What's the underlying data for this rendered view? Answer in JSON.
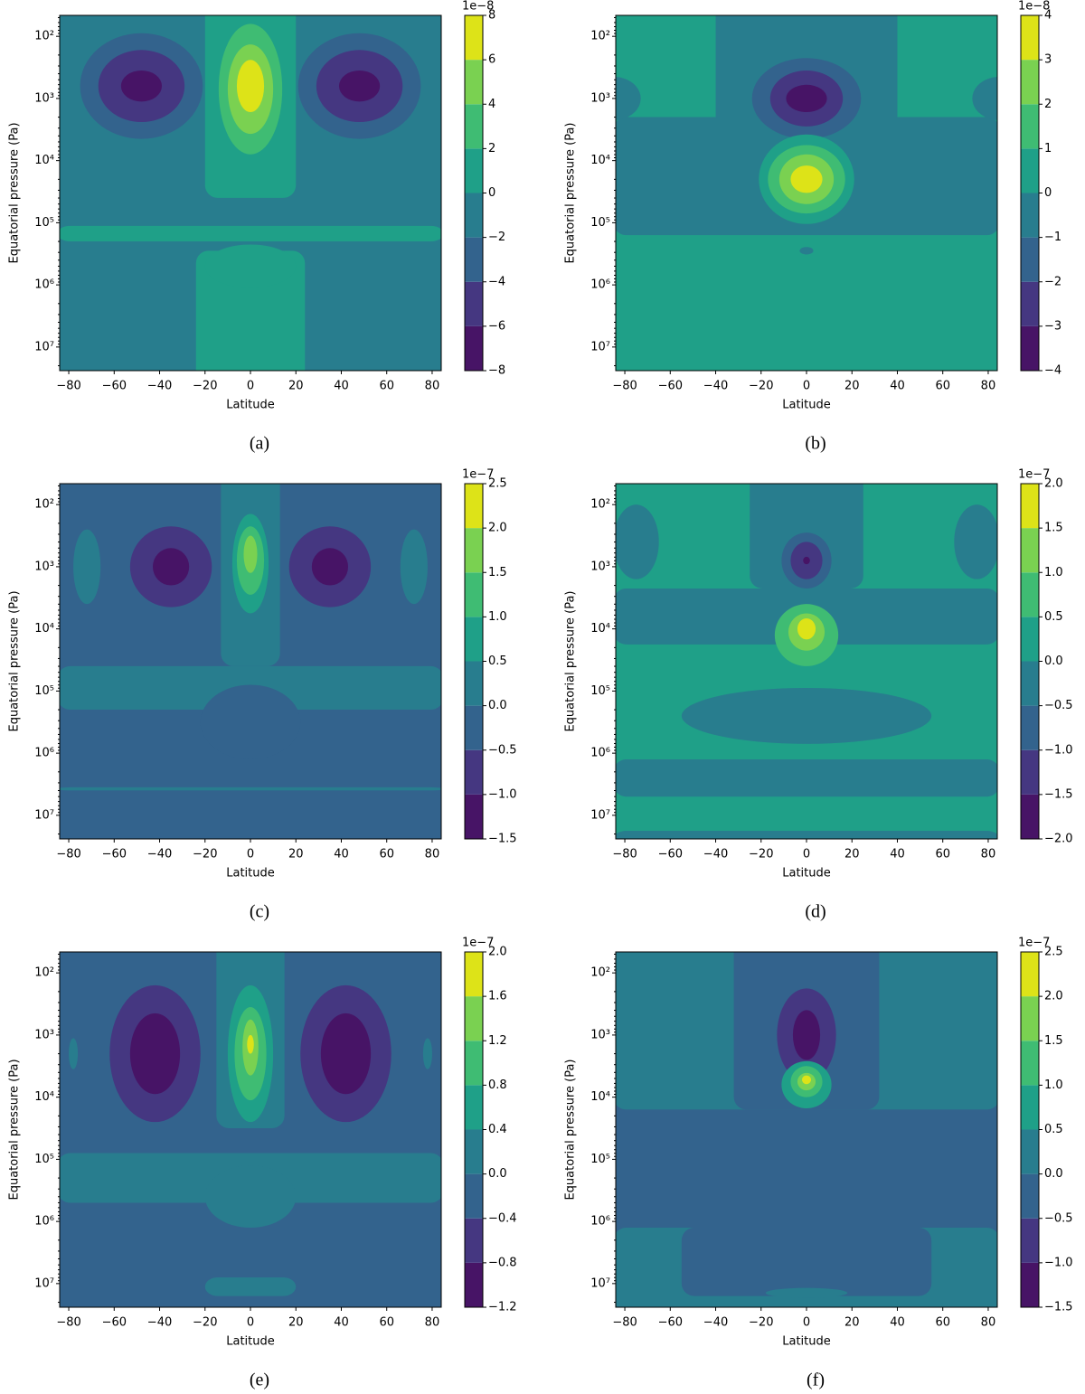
{
  "chart_data": [
    {
      "type": "contour",
      "caption": "(a)",
      "xlabel": "Latitude",
      "ylabel": "Equatorial pressure (Pa)",
      "log_y": true,
      "xlim": [
        -84,
        84
      ],
      "xticks": [
        {
          "value": -80,
          "label": "−80"
        },
        {
          "value": -60,
          "label": "−60"
        },
        {
          "value": -40,
          "label": "−40"
        },
        {
          "value": -20,
          "label": "−20"
        },
        0,
        20,
        40,
        60,
        80
      ],
      "ylim": [
        24000000,
        46
      ],
      "yticks": [
        {
          "value": 100,
          "label": "10²"
        },
        {
          "value": 1000,
          "label": "10³"
        },
        {
          "value": 10000,
          "label": "10⁴"
        },
        {
          "value": 100000,
          "label": "10⁵"
        },
        {
          "value": 1000000,
          "label": "10⁶"
        },
        {
          "value": 10000000,
          "label": "10⁷"
        }
      ],
      "colorbar_offset": "1e−8",
      "clim": [
        -8,
        8
      ],
      "cticks": [
        {
          "value": -8,
          "label": "−8"
        },
        {
          "value": -6,
          "label": "−6"
        },
        {
          "value": -4,
          "label": "−4"
        },
        {
          "value": -2,
          "label": "−2"
        },
        0,
        2,
        4,
        6,
        8
      ],
      "colors": [
        "#471466",
        "#453781",
        "#33638d",
        "#287d8e",
        "#1fa088",
        "#3fbc73",
        "#7ad151",
        "#dde318"
      ]
    },
    {
      "type": "contour",
      "caption": "(b)",
      "xlabel": "Latitude",
      "ylabel": "Equatorial pressure (Pa)",
      "log_y": true,
      "xlim": [
        -84,
        84
      ],
      "xticks": [
        {
          "value": -80,
          "label": "−80"
        },
        {
          "value": -60,
          "label": "−60"
        },
        {
          "value": -40,
          "label": "−40"
        },
        {
          "value": -20,
          "label": "−20"
        },
        0,
        20,
        40,
        60,
        80
      ],
      "ylim": [
        24000000,
        46
      ],
      "yticks": [
        {
          "value": 100,
          "label": "10²"
        },
        {
          "value": 1000,
          "label": "10³"
        },
        {
          "value": 10000,
          "label": "10⁴"
        },
        {
          "value": 100000,
          "label": "10⁵"
        },
        {
          "value": 1000000,
          "label": "10⁶"
        },
        {
          "value": 10000000,
          "label": "10⁷"
        }
      ],
      "colorbar_offset": "1e−8",
      "clim": [
        -4,
        4
      ],
      "cticks": [
        {
          "value": -4,
          "label": "−4"
        },
        {
          "value": -3,
          "label": "−3"
        },
        {
          "value": -2,
          "label": "−2"
        },
        {
          "value": -1,
          "label": "−1"
        },
        0,
        1,
        2,
        3,
        4
      ],
      "colors": [
        "#471466",
        "#453781",
        "#33638d",
        "#287d8e",
        "#1fa088",
        "#3fbc73",
        "#7ad151",
        "#dde318"
      ]
    },
    {
      "type": "contour",
      "caption": "(c)",
      "xlabel": "Latitude",
      "ylabel": "Equatorial pressure (Pa)",
      "log_y": true,
      "xlim": [
        -84,
        84
      ],
      "xticks": [
        {
          "value": -80,
          "label": "−80"
        },
        {
          "value": -60,
          "label": "−60"
        },
        {
          "value": -40,
          "label": "−40"
        },
        {
          "value": -20,
          "label": "−20"
        },
        0,
        20,
        40,
        60,
        80
      ],
      "ylim": [
        24000000,
        46
      ],
      "yticks": [
        {
          "value": 100,
          "label": "10²"
        },
        {
          "value": 1000,
          "label": "10³"
        },
        {
          "value": 10000,
          "label": "10⁴"
        },
        {
          "value": 100000,
          "label": "10⁵"
        },
        {
          "value": 1000000,
          "label": "10⁶"
        },
        {
          "value": 10000000,
          "label": "10⁷"
        }
      ],
      "colorbar_offset": "1e−7",
      "clim": [
        -1.5,
        2.5
      ],
      "cticks": [
        {
          "value": -1.5,
          "label": "−1.5"
        },
        {
          "value": -1,
          "label": "−1.0"
        },
        {
          "value": -0.5,
          "label": "−0.5"
        },
        {
          "value": 0,
          "label": "0.0"
        },
        0.5,
        {
          "value": 1,
          "label": "1.0"
        },
        1.5,
        {
          "value": 2,
          "label": "2.0"
        },
        2.5
      ],
      "colors": [
        "#471466",
        "#453781",
        "#33638d",
        "#287d8e",
        "#1fa088",
        "#3fbc73",
        "#7ad151",
        "#dde318"
      ]
    },
    {
      "type": "contour",
      "caption": "(d)",
      "xlabel": "Latitude",
      "ylabel": "Equatorial pressure (Pa)",
      "log_y": true,
      "xlim": [
        -84,
        84
      ],
      "xticks": [
        {
          "value": -80,
          "label": "−80"
        },
        {
          "value": -60,
          "label": "−60"
        },
        {
          "value": -40,
          "label": "−40"
        },
        {
          "value": -20,
          "label": "−20"
        },
        0,
        20,
        40,
        60,
        80
      ],
      "ylim": [
        24000000,
        46
      ],
      "yticks": [
        {
          "value": 100,
          "label": "10²"
        },
        {
          "value": 1000,
          "label": "10³"
        },
        {
          "value": 10000,
          "label": "10⁴"
        },
        {
          "value": 100000,
          "label": "10⁵"
        },
        {
          "value": 1000000,
          "label": "10⁶"
        },
        {
          "value": 10000000,
          "label": "10⁷"
        }
      ],
      "colorbar_offset": "1e−7",
      "clim": [
        -2,
        2
      ],
      "cticks": [
        {
          "value": -2,
          "label": "−2.0"
        },
        {
          "value": -1.5,
          "label": "−1.5"
        },
        {
          "value": -1,
          "label": "−1.0"
        },
        {
          "value": -0.5,
          "label": "−0.5"
        },
        {
          "value": 0,
          "label": "0.0"
        },
        0.5,
        {
          "value": 1,
          "label": "1.0"
        },
        1.5,
        {
          "value": 2,
          "label": "2.0"
        }
      ],
      "colors": [
        "#471466",
        "#453781",
        "#33638d",
        "#287d8e",
        "#1fa088",
        "#3fbc73",
        "#7ad151",
        "#dde318"
      ]
    },
    {
      "type": "contour",
      "caption": "(e)",
      "xlabel": "Latitude",
      "ylabel": "Equatorial pressure (Pa)",
      "log_y": true,
      "xlim": [
        -84,
        84
      ],
      "xticks": [
        {
          "value": -80,
          "label": "−80"
        },
        {
          "value": -60,
          "label": "−60"
        },
        {
          "value": -40,
          "label": "−40"
        },
        {
          "value": -20,
          "label": "−20"
        },
        0,
        20,
        40,
        60,
        80
      ],
      "ylim": [
        24000000,
        46
      ],
      "yticks": [
        {
          "value": 100,
          "label": "10²"
        },
        {
          "value": 1000,
          "label": "10³"
        },
        {
          "value": 10000,
          "label": "10⁴"
        },
        {
          "value": 100000,
          "label": "10⁵"
        },
        {
          "value": 1000000,
          "label": "10⁶"
        },
        {
          "value": 10000000,
          "label": "10⁷"
        }
      ],
      "colorbar_offset": "1e−7",
      "clim": [
        -1.2,
        2
      ],
      "cticks": [
        {
          "value": -1.2,
          "label": "−1.2"
        },
        {
          "value": -0.8,
          "label": "−0.8"
        },
        {
          "value": -0.4,
          "label": "−0.4"
        },
        {
          "value": 0,
          "label": "0.0"
        },
        0.4,
        0.8,
        1.2,
        1.6,
        {
          "value": 2,
          "label": "2.0"
        }
      ],
      "colors": [
        "#471466",
        "#453781",
        "#33638d",
        "#287d8e",
        "#1fa088",
        "#3fbc73",
        "#7ad151",
        "#dde318"
      ]
    },
    {
      "type": "contour",
      "caption": "(f)",
      "xlabel": "Latitude",
      "ylabel": "Equatorial pressure (Pa)",
      "log_y": true,
      "xlim": [
        -84,
        84
      ],
      "xticks": [
        {
          "value": -80,
          "label": "−80"
        },
        {
          "value": -60,
          "label": "−60"
        },
        {
          "value": -40,
          "label": "−40"
        },
        {
          "value": -20,
          "label": "−20"
        },
        0,
        20,
        40,
        60,
        80
      ],
      "ylim": [
        24000000,
        46
      ],
      "yticks": [
        {
          "value": 100,
          "label": "10²"
        },
        {
          "value": 1000,
          "label": "10³"
        },
        {
          "value": 10000,
          "label": "10⁴"
        },
        {
          "value": 100000,
          "label": "10⁵"
        },
        {
          "value": 1000000,
          "label": "10⁶"
        },
        {
          "value": 10000000,
          "label": "10⁷"
        }
      ],
      "colorbar_offset": "1e−7",
      "clim": [
        -1.5,
        2.5
      ],
      "cticks": [
        {
          "value": -1.5,
          "label": "−1.5"
        },
        {
          "value": -1,
          "label": "−1.0"
        },
        {
          "value": -0.5,
          "label": "−0.5"
        },
        {
          "value": 0,
          "label": "0.0"
        },
        0.5,
        {
          "value": 1,
          "label": "1.0"
        },
        1.5,
        {
          "value": 2,
          "label": "2.0"
        },
        2.5
      ],
      "colors": [
        "#471466",
        "#453781",
        "#33638d",
        "#287d8e",
        "#1fa088",
        "#3fbc73",
        "#7ad151",
        "#dde318"
      ]
    }
  ]
}
